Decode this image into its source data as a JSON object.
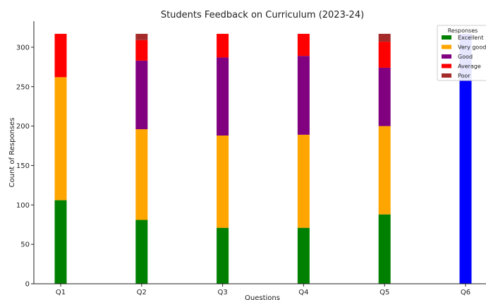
{
  "chart_data": {
    "type": "bar",
    "stacked": true,
    "title": "Students Feedback on Curriculum (2023-24)",
    "xlabel": "Questions",
    "ylabel": "Count of Responses",
    "categories": [
      "Q1",
      "Q2",
      "Q3",
      "Q4",
      "Q5",
      "Q6"
    ],
    "ylim": [
      0,
      335
    ],
    "yticks": [
      0,
      50,
      100,
      150,
      200,
      250,
      300
    ],
    "grid": false,
    "legend": {
      "title": "Responses",
      "placement": "top-right"
    },
    "series": [
      {
        "name": "Excellent",
        "color": "#008000",
        "values": [
          106,
          81,
          71,
          71,
          88,
          0
        ]
      },
      {
        "name": "Very good",
        "color": "#ffa500",
        "values": [
          156,
          115,
          117,
          118,
          112,
          0
        ]
      },
      {
        "name": "Good",
        "color": "#800080",
        "values": [
          0,
          87,
          99,
          100,
          74,
          0
        ]
      },
      {
        "name": "Average",
        "color": "#ff0000",
        "values": [
          55,
          26,
          30,
          28,
          33,
          0
        ]
      },
      {
        "name": "Poor",
        "color": "#a52a2a",
        "values": [
          0,
          8,
          0,
          0,
          10,
          0
        ]
      },
      {
        "name": "",
        "color": "#0000ff",
        "values": [
          0,
          0,
          0,
          0,
          0,
          317
        ]
      }
    ]
  }
}
